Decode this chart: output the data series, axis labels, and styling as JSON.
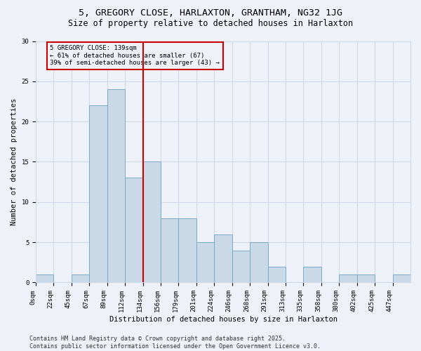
{
  "title_line1": "5, GREGORY CLOSE, HARLAXTON, GRANTHAM, NG32 1JG",
  "title_line2": "Size of property relative to detached houses in Harlaxton",
  "xlabel": "Distribution of detached houses by size in Harlaxton",
  "ylabel": "Number of detached properties",
  "bar_labels": [
    "0sqm",
    "22sqm",
    "45sqm",
    "67sqm",
    "89sqm",
    "112sqm",
    "134sqm",
    "156sqm",
    "179sqm",
    "201sqm",
    "224sqm",
    "246sqm",
    "268sqm",
    "291sqm",
    "313sqm",
    "335sqm",
    "358sqm",
    "380sqm",
    "402sqm",
    "425sqm",
    "447sqm"
  ],
  "bar_values": [
    1,
    0,
    1,
    22,
    24,
    13,
    15,
    8,
    8,
    5,
    6,
    4,
    5,
    2,
    0,
    2,
    0,
    1,
    1,
    0,
    1
  ],
  "bar_color": "#c9d9e8",
  "bar_edge_color": "#7aaac8",
  "grid_color": "#d0d8e8",
  "background_color": "#eef2f8",
  "vline_x": 6.0,
  "vline_color": "#cc0000",
  "annotation_text": "5 GREGORY CLOSE: 139sqm\n← 61% of detached houses are smaller (67)\n39% of semi-detached houses are larger (43) →",
  "annotation_box_color": "#cc0000",
  "ylim": [
    0,
    30
  ],
  "yticks": [
    0,
    5,
    10,
    15,
    20,
    25,
    30
  ],
  "footer_line1": "Contains HM Land Registry data © Crown copyright and database right 2025.",
  "footer_line2": "Contains public sector information licensed under the Open Government Licence v3.0.",
  "title_fontsize": 9.5,
  "subtitle_fontsize": 8.5,
  "axis_label_fontsize": 7.5,
  "tick_fontsize": 6.5,
  "annotation_fontsize": 6.5,
  "footer_fontsize": 6.0
}
